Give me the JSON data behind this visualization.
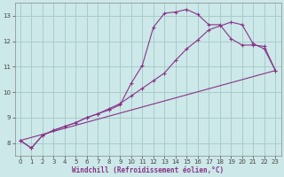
{
  "xlabel": "Windchill (Refroidissement éolien,°C)",
  "bg_color": "#cce8e8",
  "grid_color": "#aacccc",
  "line_color": "#883388",
  "xlim": [
    -0.5,
    23.5
  ],
  "ylim": [
    7.5,
    13.5
  ],
  "xticks": [
    0,
    1,
    2,
    3,
    4,
    5,
    6,
    7,
    8,
    9,
    10,
    11,
    12,
    13,
    14,
    15,
    16,
    17,
    18,
    19,
    20,
    21,
    22,
    23
  ],
  "yticks": [
    8,
    9,
    10,
    11,
    12,
    13
  ],
  "line1_x": [
    0,
    1,
    2,
    3,
    4,
    5,
    6,
    7,
    8,
    9,
    10,
    11,
    12,
    13,
    14,
    15,
    16,
    17,
    18,
    19,
    20,
    21,
    22,
    23
  ],
  "line1_y": [
    8.1,
    7.8,
    8.3,
    8.5,
    8.65,
    8.8,
    9.0,
    9.15,
    9.3,
    9.5,
    10.35,
    11.05,
    12.55,
    13.1,
    13.15,
    13.25,
    13.05,
    12.65,
    12.65,
    12.1,
    11.85,
    11.85,
    11.8,
    10.85
  ],
  "line2_x": [
    0,
    1,
    2,
    3,
    4,
    5,
    6,
    7,
    8,
    9,
    10,
    11,
    12,
    13,
    14,
    15,
    16,
    17,
    18,
    19,
    20,
    21,
    22,
    23
  ],
  "line2_y": [
    8.1,
    7.8,
    8.3,
    8.5,
    8.65,
    8.8,
    9.0,
    9.15,
    9.35,
    9.55,
    9.85,
    10.15,
    10.45,
    10.75,
    11.25,
    11.7,
    12.05,
    12.45,
    12.6,
    12.75,
    12.65,
    11.9,
    11.7,
    10.85
  ],
  "line3_x": [
    0,
    23
  ],
  "line3_y": [
    8.1,
    10.85
  ],
  "tick_fontsize": 5.0,
  "label_fontsize": 5.5
}
